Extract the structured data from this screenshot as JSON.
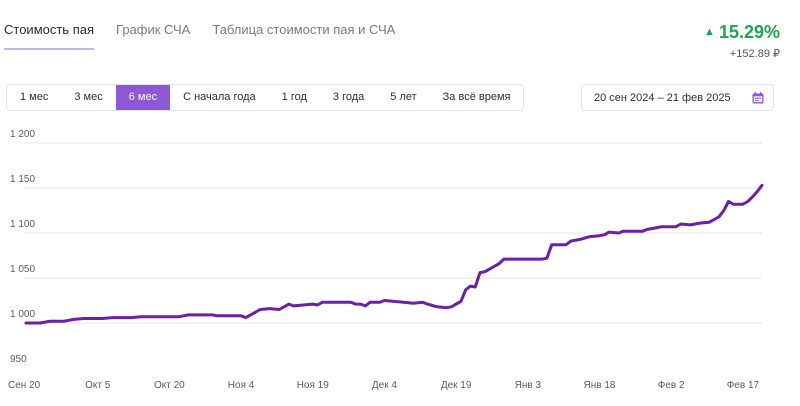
{
  "tabs": [
    {
      "label": "Стоимость пая",
      "active": true
    },
    {
      "label": "График СЧА",
      "active": false
    },
    {
      "label": "Таблица стоимости пая и СЧА",
      "active": false
    }
  ],
  "performance": {
    "percent": "15.29%",
    "amount": "+152.89 ₽",
    "color": "#1aa64a"
  },
  "periods": [
    {
      "label": "1 мес",
      "active": false
    },
    {
      "label": "3 мес",
      "active": false
    },
    {
      "label": "6 мес",
      "active": true
    },
    {
      "label": "С начала года",
      "active": false
    },
    {
      "label": "1 год",
      "active": false
    },
    {
      "label": "3 года",
      "active": false
    },
    {
      "label": "5 лет",
      "active": false
    },
    {
      "label": "За всё время",
      "active": false
    }
  ],
  "date_range": {
    "label": "20 сен 2024 – 21 фев 2025",
    "icon": "calendar-icon"
  },
  "colors": {
    "accent": "#8e57d8",
    "line": "#6c1fa8",
    "grid": "#e6e6ea"
  },
  "chart_data": {
    "type": "line",
    "title": "",
    "xlabel": "",
    "ylabel": "",
    "ylim": [
      950,
      1200
    ],
    "y_ticks": [
      {
        "value": 1200,
        "label": "1 200"
      },
      {
        "value": 1150,
        "label": "1 150"
      },
      {
        "value": 1100,
        "label": "1 100"
      },
      {
        "value": 1050,
        "label": "1 050"
      },
      {
        "value": 1000,
        "label": "1 000"
      },
      {
        "value": 950,
        "label": "950"
      }
    ],
    "x_ticks": [
      {
        "day": 0,
        "label": "Сен 20"
      },
      {
        "day": 15,
        "label": "Окт 5"
      },
      {
        "day": 30,
        "label": "Окт 20"
      },
      {
        "day": 45,
        "label": "Ноя 4"
      },
      {
        "day": 60,
        "label": "Ноя 19"
      },
      {
        "day": 75,
        "label": "Дек 4"
      },
      {
        "day": 90,
        "label": "Дек 19"
      },
      {
        "day": 105,
        "label": "Янв 3"
      },
      {
        "day": 120,
        "label": "Янв 18"
      },
      {
        "day": 135,
        "label": "Фев 2"
      },
      {
        "day": 150,
        "label": "Фев 17"
      }
    ],
    "x_range": [
      0,
      154
    ],
    "grid": true,
    "legend": "none",
    "series": [
      {
        "name": "",
        "points": [
          [
            0,
            1000
          ],
          [
            3,
            1000
          ],
          [
            4,
            1001
          ],
          [
            5,
            1002
          ],
          [
            8,
            1002
          ],
          [
            10,
            1004
          ],
          [
            12,
            1005
          ],
          [
            16,
            1005
          ],
          [
            18,
            1006
          ],
          [
            22,
            1006
          ],
          [
            24,
            1007
          ],
          [
            32,
            1007
          ],
          [
            34,
            1009
          ],
          [
            39,
            1009
          ],
          [
            40,
            1008
          ],
          [
            45,
            1008
          ],
          [
            46,
            1006
          ],
          [
            47,
            1009
          ],
          [
            49,
            1015
          ],
          [
            51,
            1016
          ],
          [
            53,
            1015
          ],
          [
            55,
            1021
          ],
          [
            56,
            1019
          ],
          [
            58,
            1020
          ],
          [
            60,
            1021
          ],
          [
            61,
            1020
          ],
          [
            62,
            1023
          ],
          [
            66,
            1023
          ],
          [
            68,
            1023
          ],
          [
            69,
            1021
          ],
          [
            70,
            1021
          ],
          [
            71,
            1019
          ],
          [
            72,
            1023
          ],
          [
            74,
            1023
          ],
          [
            75,
            1025
          ],
          [
            77,
            1024
          ],
          [
            79,
            1023
          ],
          [
            81,
            1022
          ],
          [
            83,
            1023
          ],
          [
            84,
            1021
          ],
          [
            86,
            1018
          ],
          [
            88,
            1017
          ],
          [
            89,
            1018
          ],
          [
            90,
            1021
          ],
          [
            91,
            1024
          ],
          [
            92,
            1037
          ],
          [
            93,
            1041
          ],
          [
            94,
            1040
          ],
          [
            95,
            1056
          ],
          [
            96,
            1057
          ],
          [
            98,
            1063
          ],
          [
            99,
            1066
          ],
          [
            100,
            1071
          ],
          [
            104,
            1071
          ],
          [
            108,
            1071
          ],
          [
            109,
            1072
          ],
          [
            110,
            1087
          ],
          [
            111,
            1087
          ],
          [
            113,
            1087
          ],
          [
            114,
            1091
          ],
          [
            116,
            1093
          ],
          [
            118,
            1096
          ],
          [
            120,
            1097
          ],
          [
            121,
            1098
          ],
          [
            122,
            1101
          ],
          [
            124,
            1100
          ],
          [
            125,
            1102
          ],
          [
            129,
            1102
          ],
          [
            130,
            1104
          ],
          [
            132,
            1106
          ],
          [
            133,
            1107
          ],
          [
            136,
            1107
          ],
          [
            137,
            1110
          ],
          [
            139,
            1109
          ],
          [
            141,
            1111
          ],
          [
            143,
            1112
          ],
          [
            144,
            1115
          ],
          [
            145,
            1118
          ],
          [
            146,
            1125
          ],
          [
            147,
            1135
          ],
          [
            148,
            1132
          ],
          [
            150,
            1132
          ],
          [
            151,
            1135
          ],
          [
            152,
            1140
          ],
          [
            153,
            1146
          ],
          [
            154,
            1153
          ]
        ]
      }
    ]
  }
}
